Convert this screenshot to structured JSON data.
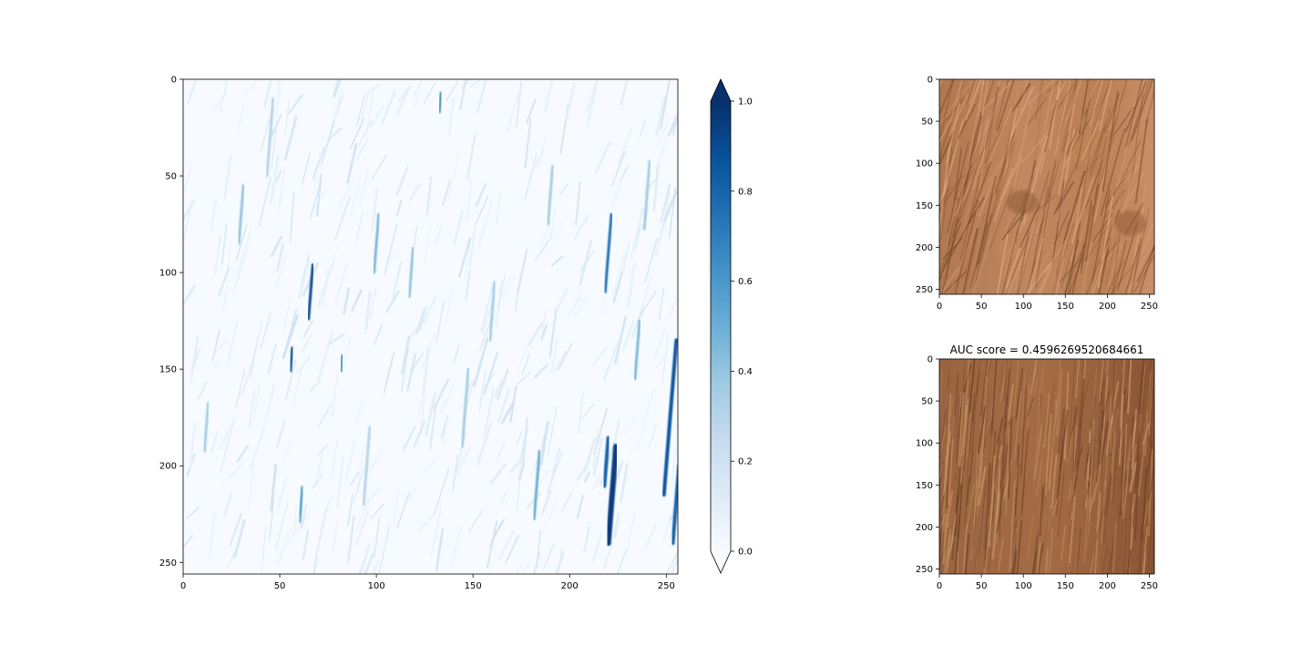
{
  "chart_data": [
    {
      "type": "heatmap",
      "name": "anomaly-map",
      "description_text_free": true,
      "x_range": [
        0,
        256
      ],
      "y_range": [
        0,
        256
      ],
      "xticks": [
        0,
        50,
        100,
        150,
        200,
        250
      ],
      "yticks": [
        0,
        50,
        100,
        150,
        200,
        250
      ],
      "colormap": "Blues",
      "streaks": [
        {
          "x": 222,
          "y": 215,
          "len": 50,
          "w": 6,
          "v": 0.95
        },
        {
          "x": 219,
          "y": 198,
          "len": 25,
          "w": 4,
          "v": 0.8
        },
        {
          "x": 252,
          "y": 175,
          "len": 80,
          "w": 4,
          "v": 0.85
        },
        {
          "x": 255,
          "y": 220,
          "len": 40,
          "w": 4,
          "v": 0.8
        },
        {
          "x": 66,
          "y": 110,
          "len": 28,
          "w": 3,
          "v": 0.9
        },
        {
          "x": 56,
          "y": 145,
          "len": 12,
          "w": 3,
          "v": 0.85
        },
        {
          "x": 220,
          "y": 90,
          "len": 40,
          "w": 3,
          "v": 0.75
        },
        {
          "x": 133,
          "y": 12,
          "len": 10,
          "w": 3,
          "v": 0.6
        },
        {
          "x": 82,
          "y": 147,
          "len": 8,
          "w": 3,
          "v": 0.6
        },
        {
          "x": 61,
          "y": 220,
          "len": 18,
          "w": 3,
          "v": 0.55
        },
        {
          "x": 183,
          "y": 210,
          "len": 35,
          "w": 3,
          "v": 0.5
        },
        {
          "x": 235,
          "y": 140,
          "len": 30,
          "w": 3,
          "v": 0.45
        },
        {
          "x": 100,
          "y": 85,
          "len": 30,
          "w": 3,
          "v": 0.45
        },
        {
          "x": 30,
          "y": 70,
          "len": 30,
          "w": 3,
          "v": 0.4
        },
        {
          "x": 12,
          "y": 180,
          "len": 25,
          "w": 3,
          "v": 0.35
        },
        {
          "x": 146,
          "y": 170,
          "len": 40,
          "w": 3,
          "v": 0.35
        },
        {
          "x": 118,
          "y": 100,
          "len": 25,
          "w": 3,
          "v": 0.4
        },
        {
          "x": 190,
          "y": 60,
          "len": 30,
          "w": 3,
          "v": 0.35
        },
        {
          "x": 45,
          "y": 30,
          "len": 40,
          "w": 3,
          "v": 0.3
        },
        {
          "x": 160,
          "y": 120,
          "len": 30,
          "w": 3,
          "v": 0.35
        },
        {
          "x": 240,
          "y": 60,
          "len": 35,
          "w": 3,
          "v": 0.35
        },
        {
          "x": 95,
          "y": 200,
          "len": 40,
          "w": 3,
          "v": 0.3
        }
      ]
    },
    {
      "type": "colorbar",
      "name": "colorbar",
      "range": [
        0.0,
        1.0
      ],
      "ticks": [
        "0.0",
        "0.2",
        "0.4",
        "0.6",
        "0.8",
        "1.0"
      ],
      "extend": "both",
      "colormap": "Blues"
    },
    {
      "type": "image",
      "name": "input-image",
      "title": "",
      "x_range": [
        0,
        256
      ],
      "y_range": [
        0,
        256
      ],
      "xticks": [
        0,
        50,
        100,
        150,
        200,
        250
      ],
      "yticks": [
        0,
        50,
        100,
        150,
        200,
        250
      ]
    },
    {
      "type": "image",
      "name": "reconstruction-image",
      "title": "AUC score = 0.4596269520684661",
      "x_range": [
        0,
        256
      ],
      "y_range": [
        0,
        256
      ],
      "xticks": [
        0,
        50,
        100,
        150,
        200,
        250
      ],
      "yticks": [
        0,
        50,
        100,
        150,
        200,
        250
      ]
    }
  ],
  "colors": {
    "blue_low": "#f7fbff",
    "blue_mid": "#6baed6",
    "blue_high": "#08306b",
    "wood_light": "#c48a62",
    "wood_dark": "#8e5a35"
  }
}
